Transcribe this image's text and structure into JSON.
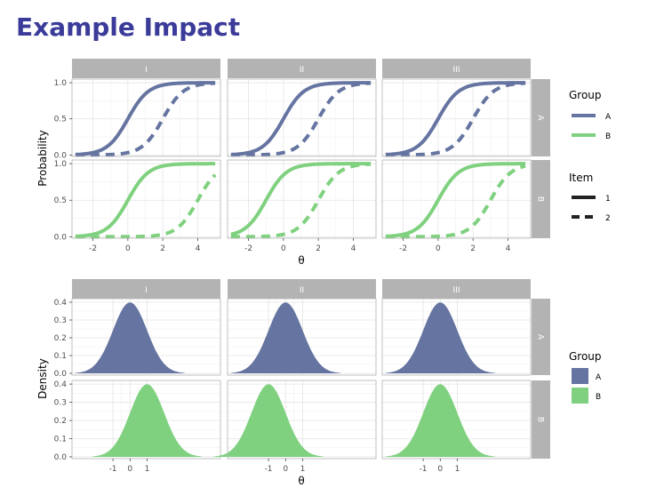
{
  "slide": {
    "title": "Example Impact"
  },
  "colors": {
    "title": "#3b3b9a",
    "group_A": "#6574a0",
    "group_B": "#7fd17f",
    "strip_bg": "#b3b3b3",
    "strip_text": "#ffffff",
    "grid": "#e4e4e4",
    "panel_border": "#b3b3b3",
    "axis_text": "#4d4d4d"
  },
  "chart_data": [
    {
      "type": "line",
      "description_free": true,
      "facet_columns": [
        "I",
        "II",
        "III"
      ],
      "facet_rows": [
        "A",
        "B"
      ],
      "xlabel": "θ",
      "ylabel": "Probability",
      "xlim": [
        -3.2,
        5.3
      ],
      "ylim": [
        -0.02,
        1.05
      ],
      "x_ticks": [
        -2,
        0,
        2,
        4
      ],
      "y_ticks": [
        0.0,
        0.5,
        1.0
      ],
      "y_tick_labels": [
        "0.0",
        "0.5",
        "1.0"
      ],
      "x_range_curves": [
        -3,
        5
      ],
      "legend_group": {
        "title": "Group",
        "entries": [
          "A",
          "B"
        ]
      },
      "legend_item": {
        "title": "Item",
        "entries": [
          "1",
          "2"
        ]
      },
      "series_params": {
        "A": {
          "I": {
            "item1": {
              "a": 1.7,
              "b": 0
            },
            "item2": {
              "a": 1.7,
              "b": 2.0
            }
          },
          "II": {
            "item1": {
              "a": 1.7,
              "b": 0
            },
            "item2": {
              "a": 1.7,
              "b": 2.0
            }
          },
          "III": {
            "item1": {
              "a": 1.7,
              "b": 0
            },
            "item2": {
              "a": 1.7,
              "b": 2.0
            }
          }
        },
        "B": {
          "I": {
            "item1": {
              "a": 1.7,
              "b": 0
            },
            "item2": {
              "a": 1.7,
              "b": 4.0
            }
          },
          "II": {
            "item1": {
              "a": 1.7,
              "b": -1
            },
            "item2": {
              "a": 1.7,
              "b": 2.0
            }
          },
          "III": {
            "item1": {
              "a": 1.7,
              "b": 0
            },
            "item2": {
              "a": 1.7,
              "b": 3.0
            }
          }
        }
      }
    },
    {
      "type": "area",
      "facet_columns": [
        "I",
        "II",
        "III"
      ],
      "facet_rows": [
        "A",
        "B"
      ],
      "xlabel": "θ",
      "ylabel": "Density",
      "xlim": [
        -3.4,
        5.3
      ],
      "ylim": [
        -0.01,
        0.42
      ],
      "x_ticks": [
        -1,
        0,
        1
      ],
      "y_ticks": [
        0.0,
        0.1,
        0.2,
        0.3,
        0.4
      ],
      "y_tick_labels": [
        "0.0",
        "0.1",
        "0.2",
        "0.3",
        "0.4"
      ],
      "x_range_curves": [
        -3.2,
        3.2
      ],
      "legend_group": {
        "title": "Group",
        "entries": [
          "A",
          "B"
        ]
      },
      "distributions": {
        "A": {
          "I": {
            "mean": 0,
            "sd": 1
          },
          "II": {
            "mean": 0,
            "sd": 1
          },
          "III": {
            "mean": 0,
            "sd": 1
          }
        },
        "B": {
          "I": {
            "mean": 1,
            "sd": 1
          },
          "II": {
            "mean": -1,
            "sd": 1
          },
          "III": {
            "mean": 0,
            "sd": 1
          }
        }
      }
    }
  ]
}
